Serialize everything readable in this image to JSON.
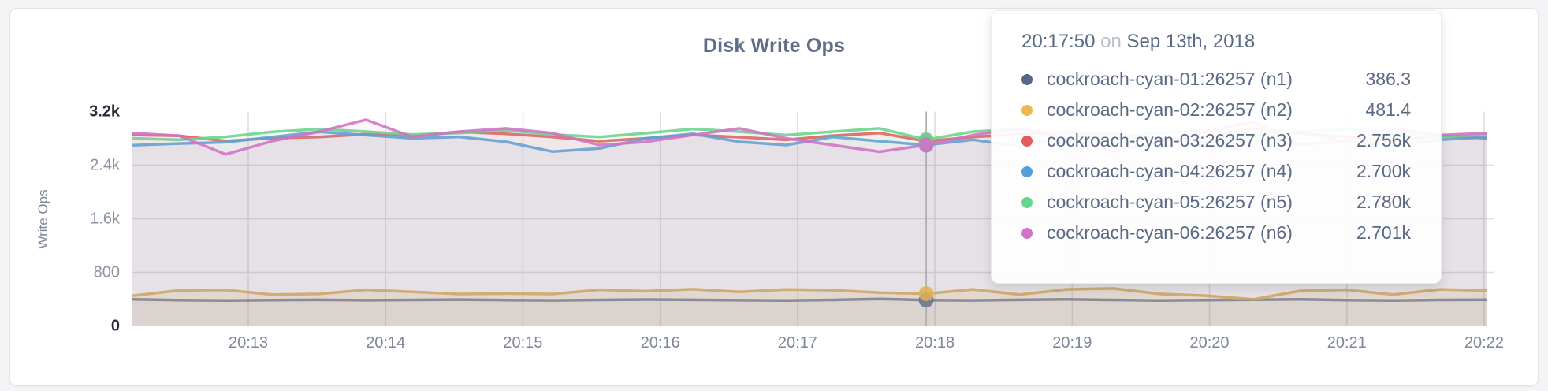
{
  "chart": {
    "title": "Disk Write Ops",
    "y_axis": {
      "label": "Write Ops",
      "ticks": [
        {
          "label": "0",
          "value": 0,
          "strong": true
        },
        {
          "label": "800",
          "value": 800,
          "strong": false
        },
        {
          "label": "1.6k",
          "value": 1600,
          "strong": false
        },
        {
          "label": "2.4k",
          "value": 2400,
          "strong": false
        },
        {
          "label": "3.2k",
          "value": 3200,
          "strong": true
        }
      ]
    }
  },
  "chart_data": {
    "type": "area",
    "title": "Disk Write Ops",
    "xlabel": "",
    "ylabel": "Write Ops",
    "ylim": [
      0,
      3200
    ],
    "grid": true,
    "x_ticks": [
      "20:13",
      "20:14",
      "20:15",
      "20:16",
      "20:17",
      "20:18",
      "20:19",
      "20:20",
      "20:21",
      "20:22"
    ],
    "hover_index": 17,
    "series": [
      {
        "name": "cockroach-cyan-01:26257 (n1)",
        "color": "#69748e",
        "values": [
          398,
          385,
          380,
          386,
          390,
          384,
          388,
          393,
          386,
          381,
          388,
          394,
          390,
          384,
          379,
          388,
          404,
          386.3,
          381,
          390,
          396,
          388,
          380,
          386,
          392,
          398,
          386,
          379,
          388,
          391
        ]
      },
      {
        "name": "cockroach-cyan-02:26257 (n2)",
        "color": "#e0b152",
        "values": [
          450,
          530,
          536,
          468,
          478,
          540,
          508,
          476,
          483,
          477,
          540,
          519,
          548,
          508,
          545,
          534,
          498,
          481.4,
          546,
          468,
          546,
          560,
          478,
          452,
          396,
          522,
          540,
          468,
          546,
          528
        ]
      },
      {
        "name": "cockroach-cyan-03:26257 (n3)",
        "color": "#e25c5c",
        "values": [
          2852,
          2838,
          2760,
          2802,
          2820,
          2862,
          2840,
          2898,
          2868,
          2820,
          2758,
          2800,
          2852,
          2818,
          2778,
          2840,
          2880,
          2756,
          2820,
          2862,
          2900,
          2840,
          2778,
          2820,
          2948,
          2878,
          2820,
          2758,
          2840,
          2800
        ]
      },
      {
        "name": "cockroach-cyan-04:26257 (n4)",
        "color": "#5c9fd8",
        "values": [
          2698,
          2722,
          2742,
          2820,
          2898,
          2848,
          2800,
          2822,
          2748,
          2602,
          2650,
          2800,
          2868,
          2748,
          2700,
          2820,
          2758,
          2700,
          2780,
          2678,
          2820,
          2878,
          2800,
          2740,
          2848,
          2898,
          2748,
          2700,
          2780,
          2818
        ]
      },
      {
        "name": "cockroach-cyan-05:26257 (n5)",
        "color": "#6bd48c",
        "values": [
          2800,
          2778,
          2822,
          2898,
          2938,
          2900,
          2858,
          2880,
          2920,
          2858,
          2820,
          2878,
          2940,
          2900,
          2848,
          2900,
          2948,
          2780,
          2900,
          2938,
          2858,
          2820,
          2878,
          2920,
          2858,
          2900,
          2938,
          2878,
          2820,
          2858
        ]
      },
      {
        "name": "cockroach-cyan-06:26257 (n6)",
        "color": "#d072c5",
        "values": [
          2878,
          2840,
          2562,
          2760,
          2900,
          3078,
          2820,
          2900,
          2948,
          2878,
          2700,
          2748,
          2850,
          2948,
          2800,
          2700,
          2600,
          2701,
          2848,
          2948,
          2800,
          2602,
          2748,
          2900,
          3048,
          2700,
          2768,
          2948,
          2848,
          2878
        ]
      }
    ]
  },
  "tooltip": {
    "time": "20:17:50",
    "conjunction": "on",
    "date": "Sep 13th, 2018",
    "rows": [
      {
        "label": "cockroach-cyan-01:26257 (n1)",
        "value": "386.3",
        "color": "#57678a"
      },
      {
        "label": "cockroach-cyan-02:26257 (n2)",
        "value": "481.4",
        "color": "#eab94e"
      },
      {
        "label": "cockroach-cyan-03:26257 (n3)",
        "value": "2.756k",
        "color": "#e25c5c"
      },
      {
        "label": "cockroach-cyan-04:26257 (n4)",
        "value": "2.700k",
        "color": "#559fdb"
      },
      {
        "label": "cockroach-cyan-05:26257 (n5)",
        "value": "2.780k",
        "color": "#67d68d"
      },
      {
        "label": "cockroach-cyan-06:26257 (n6)",
        "value": "2.701k",
        "color": "#d072c5"
      }
    ]
  }
}
